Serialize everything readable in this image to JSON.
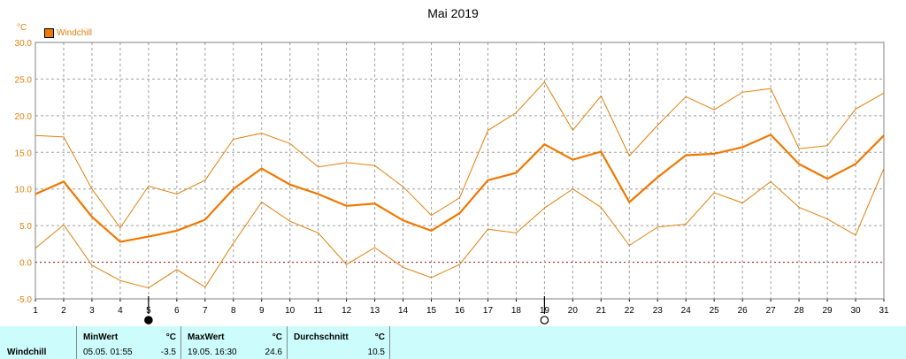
{
  "colors": {
    "series": "#f07800",
    "band": "#e0800a",
    "grid": "#a0a0a0",
    "zero": "#a00000",
    "stats_bg": "#ccfcfc"
  },
  "legend": {
    "label": "Windchill"
  },
  "stats": {
    "series_label": "Windchill",
    "min_header": "MinWert",
    "min_unit": "°C",
    "min_time": "05.05.  01:55",
    "min_value": "-3.5",
    "max_header": "MaxWert",
    "max_unit": "°C",
    "max_time": "19.05.  16:30",
    "max_value": "24.6",
    "avg_header": "Durchschnitt",
    "avg_unit": "°C",
    "avg_value": "10.5"
  },
  "chart_data": {
    "type": "line",
    "title": "Mai 2019",
    "ylabel": "°C",
    "xlabel": "",
    "ylim": [
      -5,
      30
    ],
    "yticks": [
      "30.0",
      "25.0",
      "20.0",
      "15.0",
      "10.0",
      "5.0",
      "0.0",
      "-5.0"
    ],
    "ytick_values": [
      30,
      25,
      20,
      15,
      10,
      5,
      0,
      -5
    ],
    "grid": true,
    "legend_position": "top-left",
    "x": [
      1,
      2,
      3,
      4,
      5,
      6,
      7,
      8,
      9,
      10,
      11,
      12,
      13,
      14,
      15,
      16,
      17,
      18,
      19,
      20,
      21,
      22,
      23,
      24,
      25,
      26,
      27,
      28,
      29,
      30,
      31
    ],
    "xtick_labels": [
      "1",
      "2",
      "3",
      "4",
      "5",
      "6",
      "7",
      "8",
      "9",
      "10",
      "11",
      "12",
      "13",
      "14",
      "15",
      "16",
      "17",
      "18",
      "19",
      "20",
      "21",
      "22",
      "23",
      "24",
      "25",
      "26",
      "27",
      "28",
      "29",
      "30",
      "31"
    ],
    "markers": [
      {
        "x": 5,
        "kind": "min"
      },
      {
        "x": 19,
        "kind": "max"
      }
    ],
    "series": [
      {
        "name": "Windchill",
        "role": "average",
        "values": [
          9.3,
          11.0,
          6.2,
          2.8,
          3.5,
          4.3,
          5.8,
          10.0,
          12.8,
          10.6,
          9.3,
          7.7,
          8.0,
          5.7,
          4.3,
          6.7,
          11.2,
          12.2,
          16.1,
          14.0,
          15.1,
          8.2,
          11.6,
          14.6,
          14.8,
          15.7,
          17.4,
          13.4,
          11.4,
          13.4,
          17.3
        ]
      },
      {
        "role": "max",
        "values": [
          17.3,
          17.1,
          10.0,
          4.7,
          10.4,
          9.3,
          11.2,
          16.8,
          17.6,
          16.2,
          13.0,
          13.6,
          13.2,
          10.3,
          6.4,
          8.8,
          18.0,
          20.4,
          24.6,
          18.0,
          22.7,
          14.5,
          18.7,
          22.6,
          20.8,
          23.2,
          23.7,
          15.5,
          15.9,
          20.9,
          23.1
        ]
      },
      {
        "role": "min",
        "values": [
          1.9,
          5.1,
          -0.4,
          -2.5,
          -3.5,
          -1.0,
          -3.4,
          2.6,
          8.2,
          5.6,
          4.0,
          -0.3,
          2.0,
          -0.7,
          -2.1,
          -0.3,
          4.5,
          4.0,
          7.4,
          10.0,
          7.5,
          2.3,
          4.8,
          5.2,
          9.5,
          8.1,
          11.0,
          7.5,
          5.9,
          3.7,
          12.8
        ]
      }
    ]
  }
}
